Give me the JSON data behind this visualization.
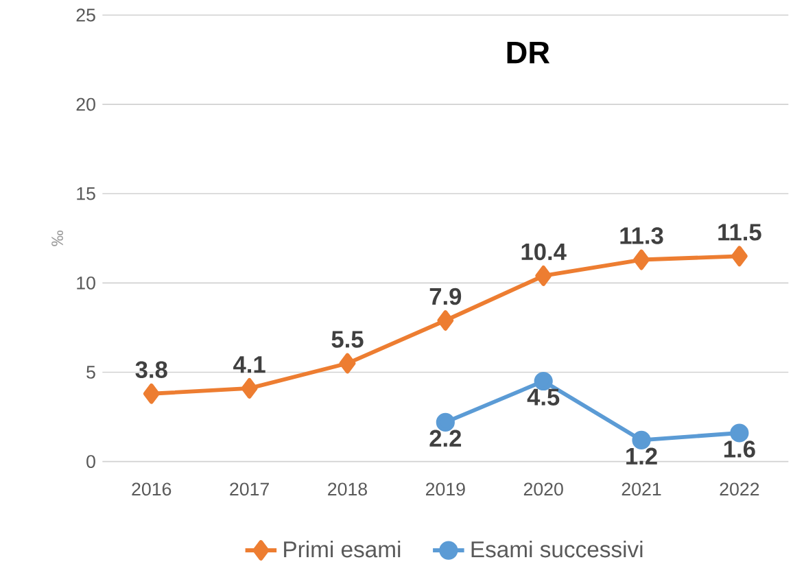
{
  "chart_data": {
    "type": "line",
    "title": "DR",
    "ylabel": "‰",
    "categories": [
      "2016",
      "2017",
      "2018",
      "2019",
      "2020",
      "2021",
      "2022"
    ],
    "series": [
      {
        "name": "Primi esami",
        "color": "#ed7d31",
        "marker": "diamond",
        "values": [
          3.8,
          4.1,
          5.5,
          7.9,
          10.4,
          11.3,
          11.5
        ]
      },
      {
        "name": "Esami successivi",
        "color": "#5b9bd5",
        "marker": "circle",
        "values": [
          null,
          null,
          null,
          2.2,
          4.5,
          1.2,
          1.6
        ]
      }
    ],
    "ylim": [
      0,
      25
    ],
    "yticks": [
      0,
      5,
      10,
      15,
      20,
      25
    ],
    "grid": "y",
    "legend": "bottom",
    "data_labels": true
  }
}
